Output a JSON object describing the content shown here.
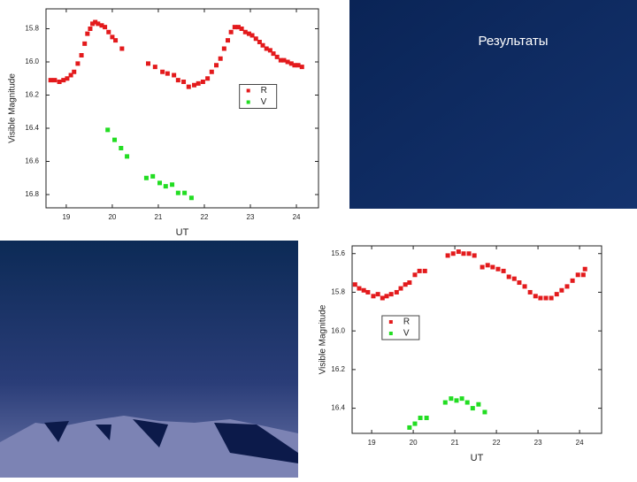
{
  "slide_title": "Результаты",
  "chart_data": [
    {
      "type": "scatter",
      "x_label": "UT",
      "y_label": "Visible Magnitude",
      "xlim": [
        18.56,
        24.48
      ],
      "ylim": [
        16.88,
        15.68
      ],
      "xticks": [
        19,
        20,
        21,
        22,
        23,
        24
      ],
      "yticks": [
        15.8,
        {
          "value": 16,
          "label": "16.0"
        },
        16.2,
        16.4,
        16.6,
        16.8
      ],
      "legend": "right",
      "series": [
        {
          "name": "R",
          "color": "#e31a1c",
          "x": [
            18.66,
            18.75,
            18.85,
            18.94,
            19.02,
            19.1,
            19.17,
            19.25,
            19.33,
            19.4,
            19.46,
            19.52,
            19.57,
            19.63,
            19.69,
            19.77,
            19.84,
            19.92,
            20.0,
            20.07,
            20.21,
            20.78,
            20.93,
            21.09,
            21.2,
            21.34,
            21.43,
            21.55,
            21.66,
            21.78,
            21.87,
            21.97,
            22.07,
            22.16,
            22.26,
            22.35,
            22.43,
            22.51,
            22.58,
            22.66,
            22.74,
            22.81,
            22.89,
            22.97,
            23.04,
            23.12,
            23.2,
            23.27,
            23.35,
            23.43,
            23.5,
            23.58,
            23.66,
            23.73,
            23.81,
            23.89,
            23.96,
            24.04,
            24.12
          ],
          "values": [
            16.11,
            16.11,
            16.12,
            16.11,
            16.1,
            16.08,
            16.06,
            16.01,
            15.96,
            15.89,
            15.83,
            15.8,
            15.77,
            15.76,
            15.77,
            15.78,
            15.79,
            15.82,
            15.85,
            15.87,
            15.92,
            16.01,
            16.03,
            16.06,
            16.07,
            16.08,
            16.11,
            16.12,
            16.15,
            16.14,
            16.13,
            16.12,
            16.1,
            16.06,
            16.02,
            15.98,
            15.92,
            15.87,
            15.82,
            15.79,
            15.79,
            15.8,
            15.82,
            15.83,
            15.84,
            15.86,
            15.88,
            15.9,
            15.92,
            15.93,
            15.95,
            15.97,
            15.99,
            15.99,
            16.0,
            16.01,
            16.02,
            16.02,
            16.03
          ]
        },
        {
          "name": "V",
          "color": "#22dd22",
          "x": [
            19.9,
            20.05,
            20.19,
            20.32,
            20.74,
            20.88,
            21.03,
            21.16,
            21.3,
            21.43,
            21.57,
            21.72
          ],
          "values": [
            16.41,
            16.47,
            16.52,
            16.57,
            16.7,
            16.69,
            16.73,
            16.75,
            16.74,
            16.79,
            16.79,
            16.82
          ]
        }
      ]
    },
    {
      "type": "scatter",
      "x_label": "UT",
      "y_label": "Visible Magnitude",
      "xlim": [
        18.53,
        24.53
      ],
      "ylim": [
        16.53,
        15.56
      ],
      "xticks": [
        19,
        20,
        21,
        22,
        23,
        24
      ],
      "yticks": [
        15.6,
        15.8,
        {
          "value": 16,
          "label": "16.0"
        },
        16.2,
        16.4
      ],
      "legend": "left",
      "series": [
        {
          "name": "R",
          "color": "#e31a1c",
          "x": [
            18.6,
            18.7,
            18.81,
            18.91,
            19.04,
            19.15,
            19.26,
            19.36,
            19.47,
            19.6,
            19.7,
            19.81,
            19.91,
            20.04,
            20.15,
            20.28,
            20.83,
            20.96,
            21.09,
            21.21,
            21.34,
            21.47,
            21.66,
            21.79,
            21.91,
            22.04,
            22.17,
            22.3,
            22.43,
            22.55,
            22.68,
            22.81,
            22.94,
            23.06,
            23.19,
            23.32,
            23.45,
            23.57,
            23.7,
            23.83,
            23.96,
            24.09,
            24.13
          ],
          "values": [
            15.76,
            15.78,
            15.79,
            15.8,
            15.82,
            15.81,
            15.83,
            15.82,
            15.81,
            15.8,
            15.78,
            15.76,
            15.75,
            15.71,
            15.69,
            15.69,
            15.61,
            15.6,
            15.59,
            15.6,
            15.6,
            15.61,
            15.67,
            15.66,
            15.67,
            15.68,
            15.69,
            15.72,
            15.73,
            15.75,
            15.77,
            15.8,
            15.82,
            15.83,
            15.83,
            15.83,
            15.81,
            15.79,
            15.77,
            15.74,
            15.71,
            15.71,
            15.68
          ]
        },
        {
          "name": "V",
          "color": "#22dd22",
          "x": [
            19.91,
            20.04,
            20.17,
            20.32,
            20.77,
            20.91,
            21.04,
            21.17,
            21.3,
            21.43,
            21.57,
            21.72
          ],
          "values": [
            16.5,
            16.48,
            16.45,
            16.45,
            16.37,
            16.35,
            16.36,
            16.35,
            16.37,
            16.4,
            16.38,
            16.42
          ]
        }
      ]
    }
  ]
}
